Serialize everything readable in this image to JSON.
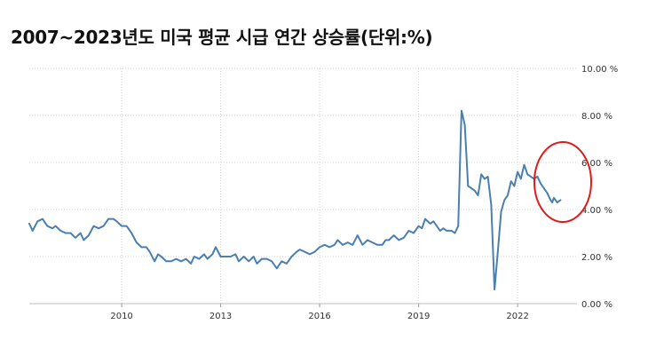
{
  "chart_data": {
    "type": "line",
    "title": "2007~2023년도 미국 평균 시급 연간 상승률(단위:%)",
    "xlabel": "",
    "ylabel": "",
    "x_ticks": [
      "2010",
      "2013",
      "2016",
      "2019",
      "2022"
    ],
    "y_ticks": [
      "0.00 %",
      "2.00 %",
      "4.00 %",
      "6.00 %",
      "8.00 %",
      "10.00 %"
    ],
    "xlim": [
      2007.2,
      2023.8
    ],
    "ylim": [
      0,
      10
    ],
    "grid": true,
    "series": [
      {
        "color": "#4a7fb0",
        "points": [
          [
            2007.2,
            3.4
          ],
          [
            2007.3,
            3.1
          ],
          [
            2007.45,
            3.5
          ],
          [
            2007.6,
            3.6
          ],
          [
            2007.75,
            3.3
          ],
          [
            2007.9,
            3.2
          ],
          [
            2008.0,
            3.3
          ],
          [
            2008.15,
            3.1
          ],
          [
            2008.3,
            3.0
          ],
          [
            2008.45,
            3.0
          ],
          [
            2008.6,
            2.8
          ],
          [
            2008.75,
            3.0
          ],
          [
            2008.85,
            2.7
          ],
          [
            2009.0,
            2.9
          ],
          [
            2009.15,
            3.3
          ],
          [
            2009.3,
            3.2
          ],
          [
            2009.45,
            3.3
          ],
          [
            2009.6,
            3.6
          ],
          [
            2009.75,
            3.6
          ],
          [
            2009.85,
            3.5
          ],
          [
            2010.0,
            3.3
          ],
          [
            2010.15,
            3.3
          ],
          [
            2010.3,
            3.0
          ],
          [
            2010.45,
            2.6
          ],
          [
            2010.6,
            2.4
          ],
          [
            2010.75,
            2.4
          ],
          [
            2010.85,
            2.2
          ],
          [
            2011.0,
            1.8
          ],
          [
            2011.1,
            2.1
          ],
          [
            2011.2,
            2.0
          ],
          [
            2011.35,
            1.8
          ],
          [
            2011.5,
            1.8
          ],
          [
            2011.65,
            1.9
          ],
          [
            2011.8,
            1.8
          ],
          [
            2011.95,
            1.9
          ],
          [
            2012.1,
            1.7
          ],
          [
            2012.2,
            2.0
          ],
          [
            2012.35,
            1.9
          ],
          [
            2012.5,
            2.1
          ],
          [
            2012.6,
            1.9
          ],
          [
            2012.75,
            2.1
          ],
          [
            2012.85,
            2.4
          ],
          [
            2013.0,
            2.0
          ],
          [
            2013.15,
            2.0
          ],
          [
            2013.3,
            2.0
          ],
          [
            2013.45,
            2.1
          ],
          [
            2013.55,
            1.8
          ],
          [
            2013.7,
            2.0
          ],
          [
            2013.85,
            1.8
          ],
          [
            2014.0,
            2.0
          ],
          [
            2014.1,
            1.7
          ],
          [
            2014.25,
            1.9
          ],
          [
            2014.4,
            1.9
          ],
          [
            2014.55,
            1.8
          ],
          [
            2014.7,
            1.5
          ],
          [
            2014.85,
            1.8
          ],
          [
            2015.0,
            1.7
          ],
          [
            2015.15,
            2.0
          ],
          [
            2015.3,
            2.2
          ],
          [
            2015.4,
            2.3
          ],
          [
            2015.55,
            2.2
          ],
          [
            2015.7,
            2.1
          ],
          [
            2015.85,
            2.2
          ],
          [
            2016.0,
            2.4
          ],
          [
            2016.15,
            2.5
          ],
          [
            2016.3,
            2.4
          ],
          [
            2016.45,
            2.5
          ],
          [
            2016.55,
            2.7
          ],
          [
            2016.7,
            2.5
          ],
          [
            2016.85,
            2.6
          ],
          [
            2017.0,
            2.5
          ],
          [
            2017.15,
            2.9
          ],
          [
            2017.3,
            2.5
          ],
          [
            2017.45,
            2.7
          ],
          [
            2017.6,
            2.6
          ],
          [
            2017.75,
            2.5
          ],
          [
            2017.9,
            2.5
          ],
          [
            2018.0,
            2.7
          ],
          [
            2018.1,
            2.7
          ],
          [
            2018.25,
            2.9
          ],
          [
            2018.4,
            2.7
          ],
          [
            2018.55,
            2.8
          ],
          [
            2018.7,
            3.1
          ],
          [
            2018.85,
            3.0
          ],
          [
            2019.0,
            3.3
          ],
          [
            2019.1,
            3.2
          ],
          [
            2019.2,
            3.6
          ],
          [
            2019.35,
            3.4
          ],
          [
            2019.45,
            3.5
          ],
          [
            2019.55,
            3.3
          ],
          [
            2019.65,
            3.1
          ],
          [
            2019.75,
            3.2
          ],
          [
            2019.85,
            3.1
          ],
          [
            2020.0,
            3.1
          ],
          [
            2020.1,
            3.0
          ],
          [
            2020.2,
            3.3
          ],
          [
            2020.3,
            8.2
          ],
          [
            2020.4,
            7.6
          ],
          [
            2020.5,
            5.0
          ],
          [
            2020.6,
            4.9
          ],
          [
            2020.7,
            4.8
          ],
          [
            2020.8,
            4.6
          ],
          [
            2020.9,
            5.5
          ],
          [
            2021.0,
            5.3
          ],
          [
            2021.1,
            5.4
          ],
          [
            2021.2,
            4.2
          ],
          [
            2021.3,
            0.6
          ],
          [
            2021.4,
            2.2
          ],
          [
            2021.5,
            3.9
          ],
          [
            2021.6,
            4.4
          ],
          [
            2021.7,
            4.6
          ],
          [
            2021.8,
            5.2
          ],
          [
            2021.9,
            5.0
          ],
          [
            2022.0,
            5.6
          ],
          [
            2022.1,
            5.3
          ],
          [
            2022.2,
            5.9
          ],
          [
            2022.3,
            5.5
          ],
          [
            2022.4,
            5.4
          ],
          [
            2022.5,
            5.3
          ],
          [
            2022.6,
            5.4
          ],
          [
            2022.7,
            5.1
          ],
          [
            2022.8,
            4.9
          ],
          [
            2022.9,
            4.7
          ],
          [
            2023.0,
            4.4
          ],
          [
            2023.05,
            4.3
          ],
          [
            2023.1,
            4.5
          ],
          [
            2023.2,
            4.3
          ],
          [
            2023.3,
            4.4
          ]
        ]
      }
    ]
  }
}
